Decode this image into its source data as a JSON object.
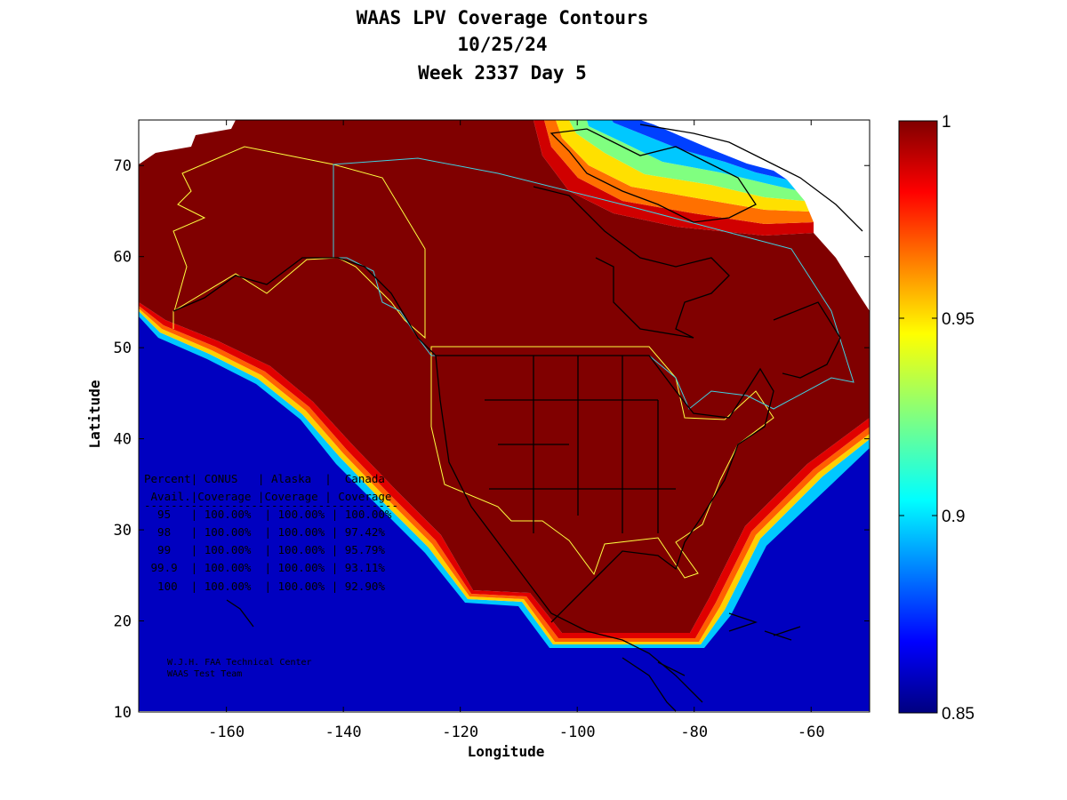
{
  "title": {
    "line1": "WAAS LPV Coverage Contours",
    "line2": "10/25/24",
    "line3": "Week 2337 Day 5"
  },
  "axes": {
    "xlabel": "Longitude",
    "ylabel": "Latitude",
    "xlim": [
      -175,
      -50
    ],
    "ylim": [
      10,
      75
    ],
    "xticks": [
      -160,
      -140,
      -120,
      -100,
      -80,
      -60
    ],
    "yticks": [
      10,
      20,
      30,
      40,
      50,
      60,
      70
    ]
  },
  "colorbar": {
    "min": 0.85,
    "max": 1,
    "ticks": [
      {
        "value": 1,
        "label": "1"
      },
      {
        "value": 0.95,
        "label": "0.95"
      },
      {
        "value": 0.9,
        "label": "0.9"
      },
      {
        "value": 0.85,
        "label": "0.85"
      }
    ]
  },
  "table": {
    "header1": "Percent| CONUS   | Alaska  |  Canada",
    "header2": " Avail.|Coverage |Coverage | Coverage",
    "divider": "--------------------------------------",
    "rows": [
      "  95   | 100.00%  | 100.00% | 100.00%",
      "  98   | 100.00%  | 100.00% | 97.42%",
      "  99   | 100.00%  | 100.00% | 95.79%",
      " 99.9  | 100.00%  | 100.00% | 93.11%",
      "  100  | 100.00%  | 100.00% | 92.90%"
    ]
  },
  "credit": {
    "line1": "W.J.H. FAA Technical Center",
    "line2": "WAAS Test Team"
  },
  "colors": {
    "coverage_core": "#800000",
    "contour_outer": [
      "#b00000",
      "#e00000",
      "#ff3000",
      "#ff8000",
      "#ffd000",
      "#80ff80",
      "#00d0ff",
      "#0060ff",
      "#0000b0"
    ],
    "alaska_conus_boundary": "#ffff40",
    "canada_boundary": "#40d0e0"
  }
}
